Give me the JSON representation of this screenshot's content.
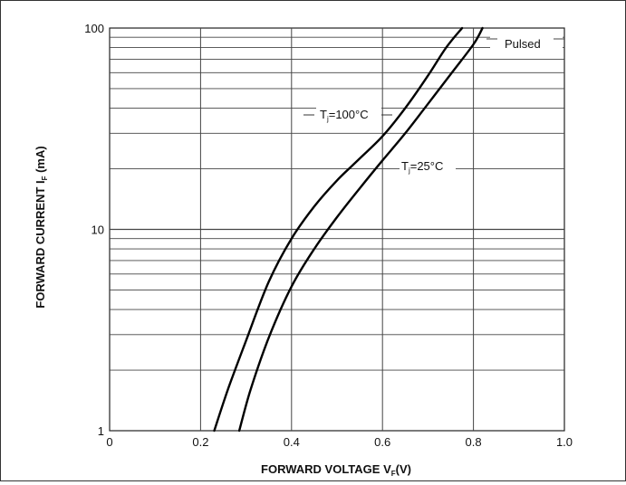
{
  "chart_data": {
    "type": "line",
    "title": "",
    "xlabel": "FORWARD VOLTAGE  V",
    "xlabel_sub": "F",
    "xlabel_suffix": "(V)",
    "ylabel": "FORWARD CURRENT I",
    "ylabel_sub": "F",
    "ylabel_suffix": "  (mA)",
    "xlim": [
      0,
      1.0
    ],
    "ylim": [
      1,
      100
    ],
    "y_scale": "log",
    "grid": true,
    "x_ticks": [
      "0",
      "0.2",
      "0.4",
      "0.6",
      "0.8",
      "1.0"
    ],
    "y_ticks": [
      "1",
      "10",
      "100"
    ],
    "annotations": {
      "pulsed": "Pulsed",
      "t100_prefix": "T",
      "t100_sub": "j",
      "t100_suffix": "=100°C",
      "t25_prefix": "T",
      "t25_sub": "j",
      "t25_suffix": "=25°C"
    },
    "series": [
      {
        "name": "Tj=100°C",
        "x": [
          0.23,
          0.26,
          0.3,
          0.35,
          0.4,
          0.45,
          0.5,
          0.55,
          0.6,
          0.65,
          0.7,
          0.74,
          0.775
        ],
        "y": [
          1.0,
          1.6,
          2.8,
          5.5,
          9.0,
          13.0,
          17.5,
          22.5,
          29.0,
          40.0,
          58.0,
          80.0,
          100.0
        ]
      },
      {
        "name": "Tj=25°C",
        "x": [
          0.285,
          0.31,
          0.35,
          0.4,
          0.45,
          0.5,
          0.55,
          0.6,
          0.65,
          0.7,
          0.75,
          0.8,
          0.82
        ],
        "y": [
          1.0,
          1.6,
          2.9,
          5.2,
          8.0,
          11.5,
          16.0,
          22.0,
          30.0,
          42.0,
          59.0,
          83.0,
          100.0
        ]
      }
    ]
  }
}
